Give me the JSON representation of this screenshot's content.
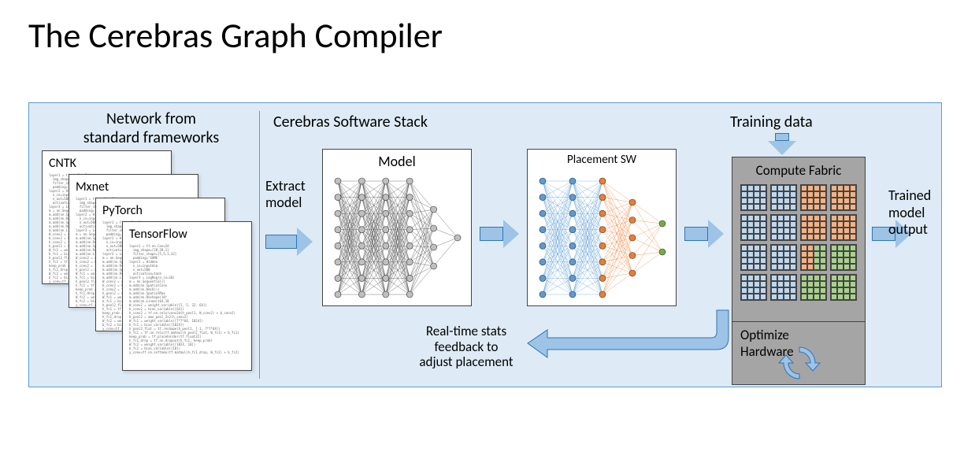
{
  "title": "The Cerebras Graph Compiler",
  "regions": {
    "frameworks_label": "Network from\nstandard frameworks",
    "stack_label": "Cerebras Software Stack",
    "training_data_label": "Training data"
  },
  "frameworks": [
    {
      "name": "CNTK"
    },
    {
      "name": "Mxnet"
    },
    {
      "name": "PyTorch"
    },
    {
      "name": "TensorFlow"
    }
  ],
  "codeblur": "layer1 = tf.nn.Conv2d\n  img_shape=[28,28,1]\n  filter_shape=[5,5,1,32]\n  padding='SAME'\nlayer2 = Hidden\n  n_in=inputdim\n  n_out=500\n  activation=tanh\nlayer3 = LogReg(n_in=10)\nm = nn.Sequential()\nm.add(nn.SpatialConv\nm.add(nn.ReLU())\nm.add(nn.SpatialMax\nm.add(nn.Reshape(16*\nm.add(nn.Linear(64,10\nW_conv2 = weight_variable([5, 5, 32, 64])\nb_conv2 = bias_variable([64])\nh_conv2 = tf.nn.relu(conv2d(h_pool1, W_conv2) + b_conv2)\nh_pool2 = max_pool_2x2(h_conv2)\nW_fc1 = weight_variable([7*7*64, 1024])\nb_fc1 = bias_variable([1024])\nh_pool2_flat = tf.reshape(h_pool2, [-1, 7*7*64])\nh_fc1 = tf.nn.relu(tf.matmul(h_pool2_flat, W_fc1) + b_fc1)\nkeep_prob = tf.placeholder(tf.float32)\nh_fc1_drop = tf.nn.dropout(h_fc1, keep_prob)\nW_fc2 = weight_variable([1024, 10])\nb_fc2 = bias_variable([10])\ny_conv=tf.nn.softmax(tf.matmul(h_fc1_drop, W_fc2) + b_fc2)",
  "boxes": {
    "model": "Model",
    "placement": "Placement  SW",
    "compute": "Compute Fabric"
  },
  "labels": {
    "extract": "Extract\nmodel",
    "output": "Trained\nmodel\noutput",
    "feedback": "Real-time stats\nfeedback to\nadjust placement",
    "optimize": "Optimize\nHardware"
  },
  "colors": {
    "bg_panel": "#deebf6",
    "panel_border": "#5b9bd5",
    "arrow_fill": "#9dc3e6",
    "arrow_border": "#2e75b6",
    "compute_bg": "#a5a5a5",
    "chip_blue": "#bdd7ee",
    "chip_orange": "#f4b183",
    "chip_green": "#a9d18e",
    "nn_model_node": "#bfbfbf",
    "nn_model_edge": "#404040",
    "nn_place_c1": "#5b9bd5",
    "nn_place_c2": "#ed7d31",
    "nn_place_c3": "#70ad47"
  },
  "fabric": {
    "layout": [
      [
        "blue",
        "blue",
        "orange",
        "orange"
      ],
      [
        "blue",
        "blue",
        "orange",
        "orange"
      ],
      [
        "blue",
        "blue",
        "half",
        "green"
      ],
      [
        "blue",
        "blue",
        "green",
        "green"
      ]
    ]
  },
  "nn_model": {
    "layers": [
      8,
      8,
      8,
      8,
      4,
      1
    ],
    "node_r": 4
  },
  "nn_placement": {
    "layers": [
      8,
      8,
      8,
      5,
      2
    ],
    "color_idx": [
      0,
      0,
      1,
      1,
      2
    ],
    "node_r": 4
  }
}
